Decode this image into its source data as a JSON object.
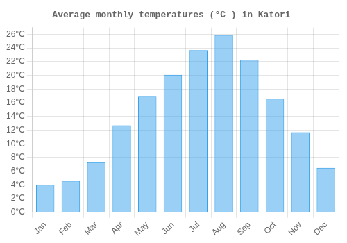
{
  "chart_data": {
    "type": "bar",
    "title": "Average monthly temperatures (°C ) in Katori",
    "categories": [
      "Jan",
      "Feb",
      "Mar",
      "Apr",
      "May",
      "Jun",
      "Jul",
      "Aug",
      "Sep",
      "Oct",
      "Nov",
      "Dec"
    ],
    "values": [
      4.0,
      4.6,
      7.3,
      12.7,
      17.0,
      20.1,
      23.7,
      25.9,
      22.3,
      16.6,
      11.7,
      6.5
    ],
    "ylim": [
      0,
      27
    ],
    "yticks": [
      {
        "value": 0,
        "label": "0°C"
      },
      {
        "value": 2,
        "label": "2°C"
      },
      {
        "value": 4,
        "label": "4°C"
      },
      {
        "value": 6,
        "label": "6°C"
      },
      {
        "value": 8,
        "label": "8°C"
      },
      {
        "value": 10,
        "label": "10°C"
      },
      {
        "value": 12,
        "label": "12°C"
      },
      {
        "value": 14,
        "label": "14°C"
      },
      {
        "value": 16,
        "label": "16°C"
      },
      {
        "value": 18,
        "label": "18°C"
      },
      {
        "value": 20,
        "label": "20°C"
      },
      {
        "value": 22,
        "label": "22°C"
      },
      {
        "value": 24,
        "label": "24°C"
      },
      {
        "value": 26,
        "label": "26°C"
      }
    ],
    "grid": true
  }
}
